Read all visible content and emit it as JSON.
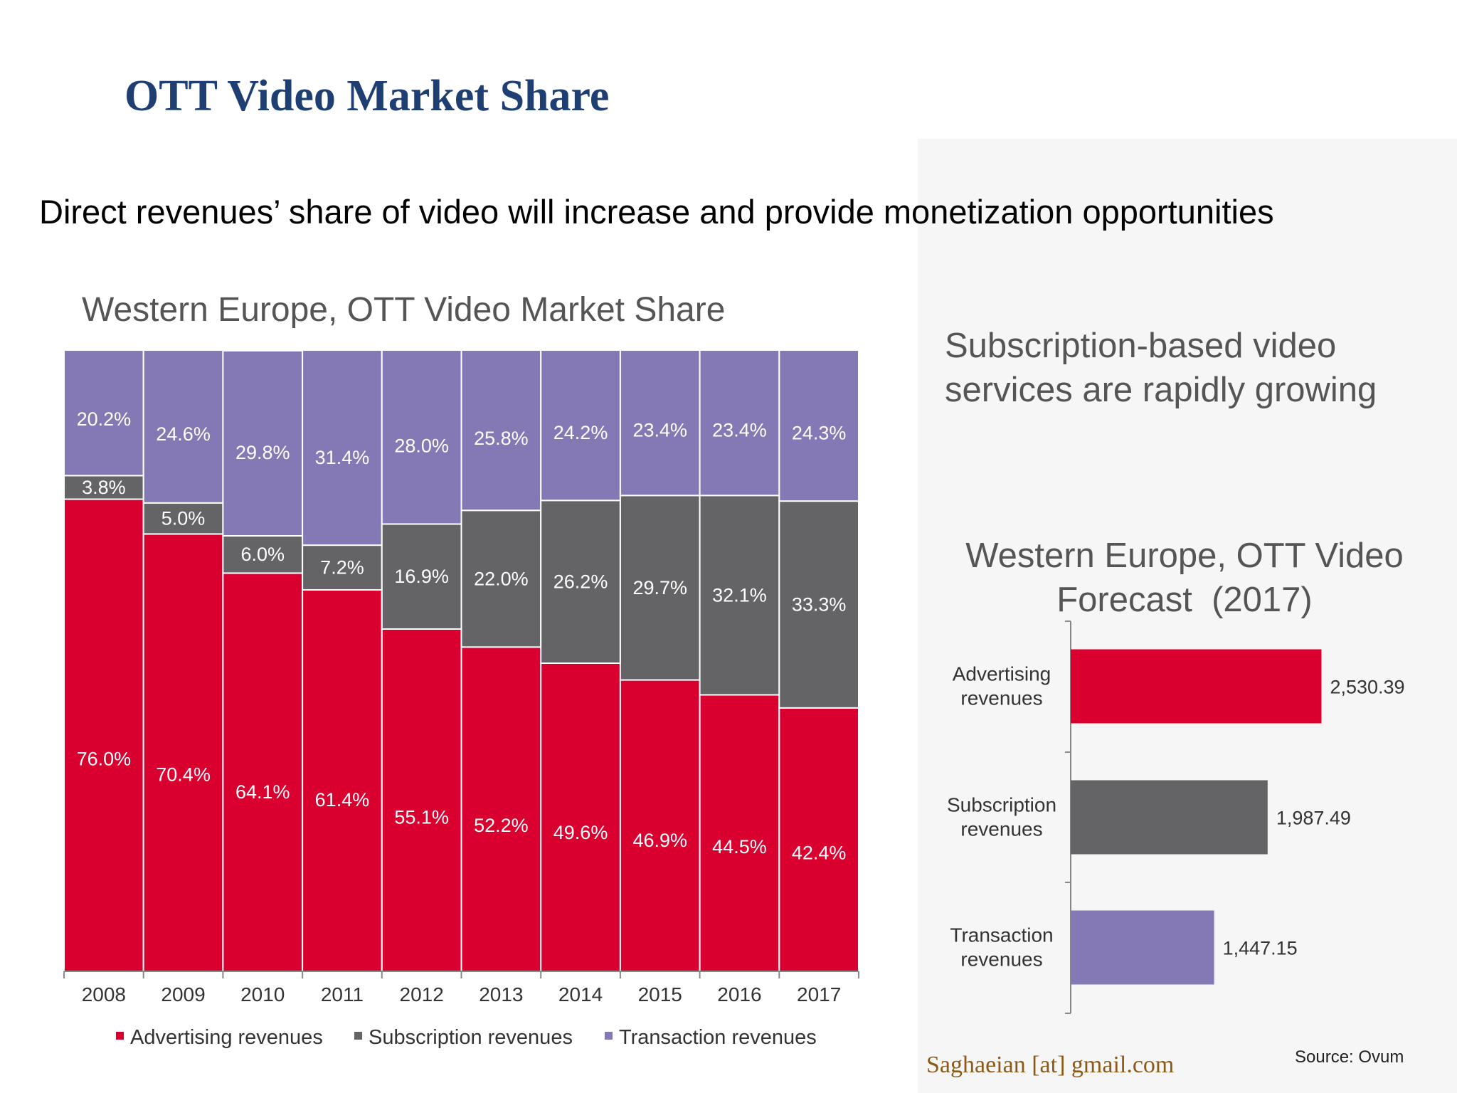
{
  "slide": {
    "title": "OTT Video Market Share",
    "subtitle": "Direct revenues’ share of video will increase and provide monetization opportunities",
    "tagline_line1": "Subscription-based video",
    "tagline_line2": "services are rapidly growing",
    "email": "Saghaeian [at] gmail.com",
    "source": "Source: Ovum"
  },
  "colors": {
    "advertising": "#d9002f",
    "subscription": "#646466",
    "transaction": "#8479b4",
    "title": "#1f3f73"
  },
  "chart_data": [
    {
      "type": "bar",
      "stacked": true,
      "title": "Western Europe, OTT Video Market Share",
      "categories": [
        "2008",
        "2009",
        "2010",
        "2011",
        "2012",
        "2013",
        "2014",
        "2015",
        "2016",
        "2017"
      ],
      "series": [
        {
          "name": "Advertising revenues",
          "values": [
            76.0,
            70.4,
            64.1,
            61.4,
            55.1,
            52.2,
            49.6,
            46.9,
            44.5,
            42.4
          ],
          "labels": [
            "76.0%",
            "70.4%",
            "64.1%",
            "61.4%",
            "55.1%",
            "52.2%",
            "49.6%",
            "46.9%",
            "44.5%",
            "42.4%"
          ]
        },
        {
          "name": "Subscription revenues",
          "values": [
            3.8,
            5.0,
            6.0,
            7.2,
            16.9,
            22.0,
            26.2,
            29.7,
            32.1,
            33.3
          ],
          "labels": [
            "3.8%",
            "5.0%",
            "6.0%",
            "7.2%",
            "16.9%",
            "22.0%",
            "26.2%",
            "29.7%",
            "32.1%",
            "33.3%"
          ]
        },
        {
          "name": "Transaction revenues",
          "values": [
            20.2,
            24.6,
            29.8,
            31.4,
            28.0,
            25.8,
            24.2,
            23.4,
            23.4,
            24.3
          ],
          "labels": [
            "20.2%",
            "24.6%",
            "29.8%",
            "31.4%",
            "28.0%",
            "25.8%",
            "24.2%",
            "23.4%",
            "23.4%",
            "24.3%"
          ]
        }
      ],
      "ylim": [
        0,
        100
      ],
      "grid": false,
      "legend": "bottom"
    },
    {
      "type": "bar",
      "orientation": "horizontal",
      "title_line1": "Western Europe, OTT Video",
      "title_line2": "Forecast  (2017)",
      "categories": [
        {
          "line1": "Advertising",
          "line2": "revenues"
        },
        {
          "line1": "Subscription",
          "line2": "revenues"
        },
        {
          "line1": "Transaction",
          "line2": "revenues"
        }
      ],
      "values": [
        2530.39,
        1987.49,
        1447.15
      ],
      "labels": [
        "2,530.39",
        "1,987.49",
        "1,447.15"
      ],
      "xlim": [
        0,
        2800
      ],
      "grid": false,
      "legend": "none"
    }
  ]
}
